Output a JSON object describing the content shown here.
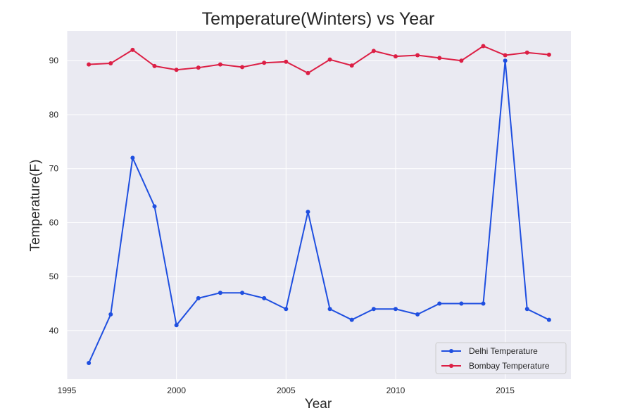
{
  "chart_data": {
    "type": "line",
    "title": "Temperature(Winters) vs Year",
    "xlabel": "Year",
    "ylabel": "Temperature(F)",
    "xlim": [
      1995,
      2018
    ],
    "ylim": [
      31,
      95.5
    ],
    "xticks": [
      1995,
      2000,
      2005,
      2010,
      2015
    ],
    "yticks": [
      40,
      50,
      60,
      70,
      80,
      90
    ],
    "grid": true,
    "legend_position": "bottom-right",
    "plot_background": "#eaeaf2",
    "x": [
      1996,
      1997,
      1998,
      1999,
      2000,
      2001,
      2002,
      2003,
      2004,
      2005,
      2006,
      2007,
      2008,
      2009,
      2010,
      2011,
      2012,
      2013,
      2014,
      2015,
      2016,
      2017
    ],
    "series": [
      {
        "name": "Delhi Temperature",
        "color": "#1f4fe0",
        "values": [
          34,
          43,
          72,
          63,
          41,
          46,
          47,
          47,
          46,
          44,
          62,
          44,
          42,
          44,
          44,
          43,
          45,
          45,
          45,
          90,
          44,
          42
        ]
      },
      {
        "name": "Bombay Temperature",
        "color": "#dc1f45",
        "values": [
          89.3,
          89.5,
          92,
          89,
          88.3,
          88.7,
          89.3,
          88.8,
          89.6,
          89.8,
          87.7,
          90.2,
          89.1,
          91.8,
          90.8,
          91,
          90.5,
          90,
          92.7,
          91,
          91.5,
          91.1
        ]
      }
    ]
  }
}
